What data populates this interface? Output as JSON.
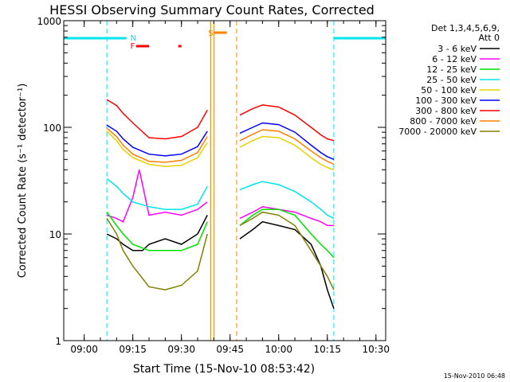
{
  "chart_data": {
    "type": "line",
    "title": "HESSI Observing Summary Count Rates, Corrected",
    "xlabel": "Start Time (15-Nov-10 08:53:42)",
    "ylabel": "Corrected Count Rate (s⁻¹ detector⁻¹)",
    "yscale": "log",
    "ylim": [
      1,
      1000
    ],
    "xlim": [
      "08:53:42",
      "10:33:00"
    ],
    "x_ticks": [
      "09:00",
      "09:15",
      "09:30",
      "09:45",
      "10:00",
      "10:15",
      "10:30"
    ],
    "y_ticks": [
      "1",
      "10",
      "100",
      "1000"
    ],
    "legend_header": [
      "Det 1,3,4,5,6,9,",
      "Att 0"
    ],
    "legend_position": "right",
    "footer_timestamp": "15-Nov-2010 06:48",
    "flags": [
      {
        "label": "N",
        "color": "#00e5ee",
        "x": "09:15"
      },
      {
        "label": "F",
        "color": "#ff0000",
        "x": "09:15"
      },
      {
        "label": "S",
        "color": "#ff8000",
        "x": "09:39"
      }
    ],
    "data_gaps": [
      [
        "08:53:42",
        "09:07"
      ],
      [
        "09:39",
        "09:48"
      ],
      [
        "10:17",
        "10:33"
      ]
    ],
    "series": [
      {
        "name": "3 - 6 keV",
        "color": "#000000",
        "x": [
          "09:07",
          "09:10",
          "09:12",
          "09:15",
          "09:18",
          "09:20",
          "09:25",
          "09:30",
          "09:35",
          "09:38",
          "09:48",
          "09:52",
          "09:55",
          "10:00",
          "10:05",
          "10:10",
          "10:13",
          "10:15",
          "10:17"
        ],
        "values": [
          10,
          9,
          8,
          7,
          7,
          8,
          9,
          8,
          10,
          15,
          9,
          11,
          13,
          12,
          11,
          8,
          5,
          3,
          2
        ]
      },
      {
        "name": "6 - 12 keV",
        "color": "#ff00ff",
        "x": [
          "09:07",
          "09:10",
          "09:12",
          "09:15",
          "09:17",
          "09:20",
          "09:25",
          "09:30",
          "09:35",
          "09:38",
          "09:48",
          "09:52",
          "09:55",
          "10:00",
          "10:05",
          "10:10",
          "10:13",
          "10:15",
          "10:17"
        ],
        "values": [
          15,
          14,
          13,
          22,
          40,
          15,
          16,
          15,
          17,
          20,
          14,
          16,
          18,
          17,
          16,
          14,
          13,
          12,
          12
        ]
      },
      {
        "name": "12 - 25 keV",
        "color": "#00e000",
        "x": [
          "09:07",
          "09:10",
          "09:12",
          "09:15",
          "09:20",
          "09:25",
          "09:30",
          "09:35",
          "09:38",
          "09:48",
          "09:52",
          "09:55",
          "10:00",
          "10:05",
          "10:10",
          "10:13",
          "10:15",
          "10:17"
        ],
        "values": [
          16,
          12,
          10,
          8,
          7,
          7,
          7,
          8,
          13,
          12,
          15,
          17,
          17,
          15,
          10,
          8,
          7,
          6
        ]
      },
      {
        "name": "25 - 50 keV",
        "color": "#00e5ee",
        "x": [
          "09:07",
          "09:10",
          "09:12",
          "09:15",
          "09:20",
          "09:25",
          "09:30",
          "09:35",
          "09:38",
          "09:48",
          "09:52",
          "09:55",
          "10:00",
          "10:05",
          "10:10",
          "10:13",
          "10:15",
          "10:17"
        ],
        "values": [
          33,
          28,
          24,
          20,
          18,
          17,
          17,
          19,
          28,
          26,
          29,
          31,
          29,
          25,
          20,
          17,
          15,
          14
        ]
      },
      {
        "name": "50 - 100 keV",
        "color": "#e8d000",
        "x": [
          "09:07",
          "09:10",
          "09:12",
          "09:15",
          "09:20",
          "09:25",
          "09:30",
          "09:35",
          "09:38",
          "09:48",
          "09:52",
          "09:55",
          "10:00",
          "10:05",
          "10:10",
          "10:13",
          "10:15",
          "10:17"
        ],
        "values": [
          92,
          75,
          62,
          52,
          45,
          43,
          44,
          52,
          72,
          65,
          75,
          82,
          80,
          68,
          52,
          45,
          42,
          40
        ]
      },
      {
        "name": "100 - 300 keV",
        "color": "#0000ff",
        "x": [
          "09:07",
          "09:10",
          "09:12",
          "09:15",
          "09:20",
          "09:25",
          "09:30",
          "09:35",
          "09:38",
          "09:48",
          "09:52",
          "09:55",
          "10:00",
          "10:05",
          "10:10",
          "10:13",
          "10:15",
          "10:17"
        ],
        "values": [
          105,
          92,
          78,
          65,
          56,
          54,
          56,
          66,
          92,
          88,
          100,
          110,
          106,
          90,
          68,
          58,
          53,
          50
        ]
      },
      {
        "name": "300 - 800 keV",
        "color": "#ff0000",
        "x": [
          "09:07",
          "09:10",
          "09:12",
          "09:15",
          "09:20",
          "09:25",
          "09:30",
          "09:35",
          "09:38",
          "09:48",
          "09:52",
          "09:55",
          "10:00",
          "10:05",
          "10:10",
          "10:13",
          "10:15",
          "10:17"
        ],
        "values": [
          182,
          160,
          135,
          110,
          80,
          78,
          82,
          100,
          145,
          130,
          150,
          162,
          155,
          130,
          100,
          85,
          78,
          75
        ]
      },
      {
        "name": "800 - 7000 keV",
        "color": "#ff8000",
        "x": [
          "09:07",
          "09:10",
          "09:12",
          "09:15",
          "09:20",
          "09:25",
          "09:30",
          "09:35",
          "09:38",
          "09:48",
          "09:52",
          "09:55",
          "10:00",
          "10:05",
          "10:10",
          "10:13",
          "10:15",
          "10:17"
        ],
        "values": [
          98,
          82,
          68,
          56,
          48,
          47,
          49,
          58,
          82,
          75,
          86,
          95,
          92,
          78,
          60,
          52,
          48,
          45
        ]
      },
      {
        "name": "7000 - 20000 keV",
        "color": "#808000",
        "x": [
          "09:07",
          "09:10",
          "09:12",
          "09:15",
          "09:20",
          "09:25",
          "09:30",
          "09:35",
          "09:38",
          "09:48",
          "09:52",
          "09:55",
          "10:00",
          "10:05",
          "10:10",
          "10:13",
          "10:15",
          "10:17"
        ],
        "values": [
          14,
          10,
          7,
          5,
          3.2,
          3,
          3.3,
          4.5,
          10,
          12,
          14,
          16,
          15,
          12,
          7,
          5,
          4,
          3
        ]
      }
    ]
  }
}
